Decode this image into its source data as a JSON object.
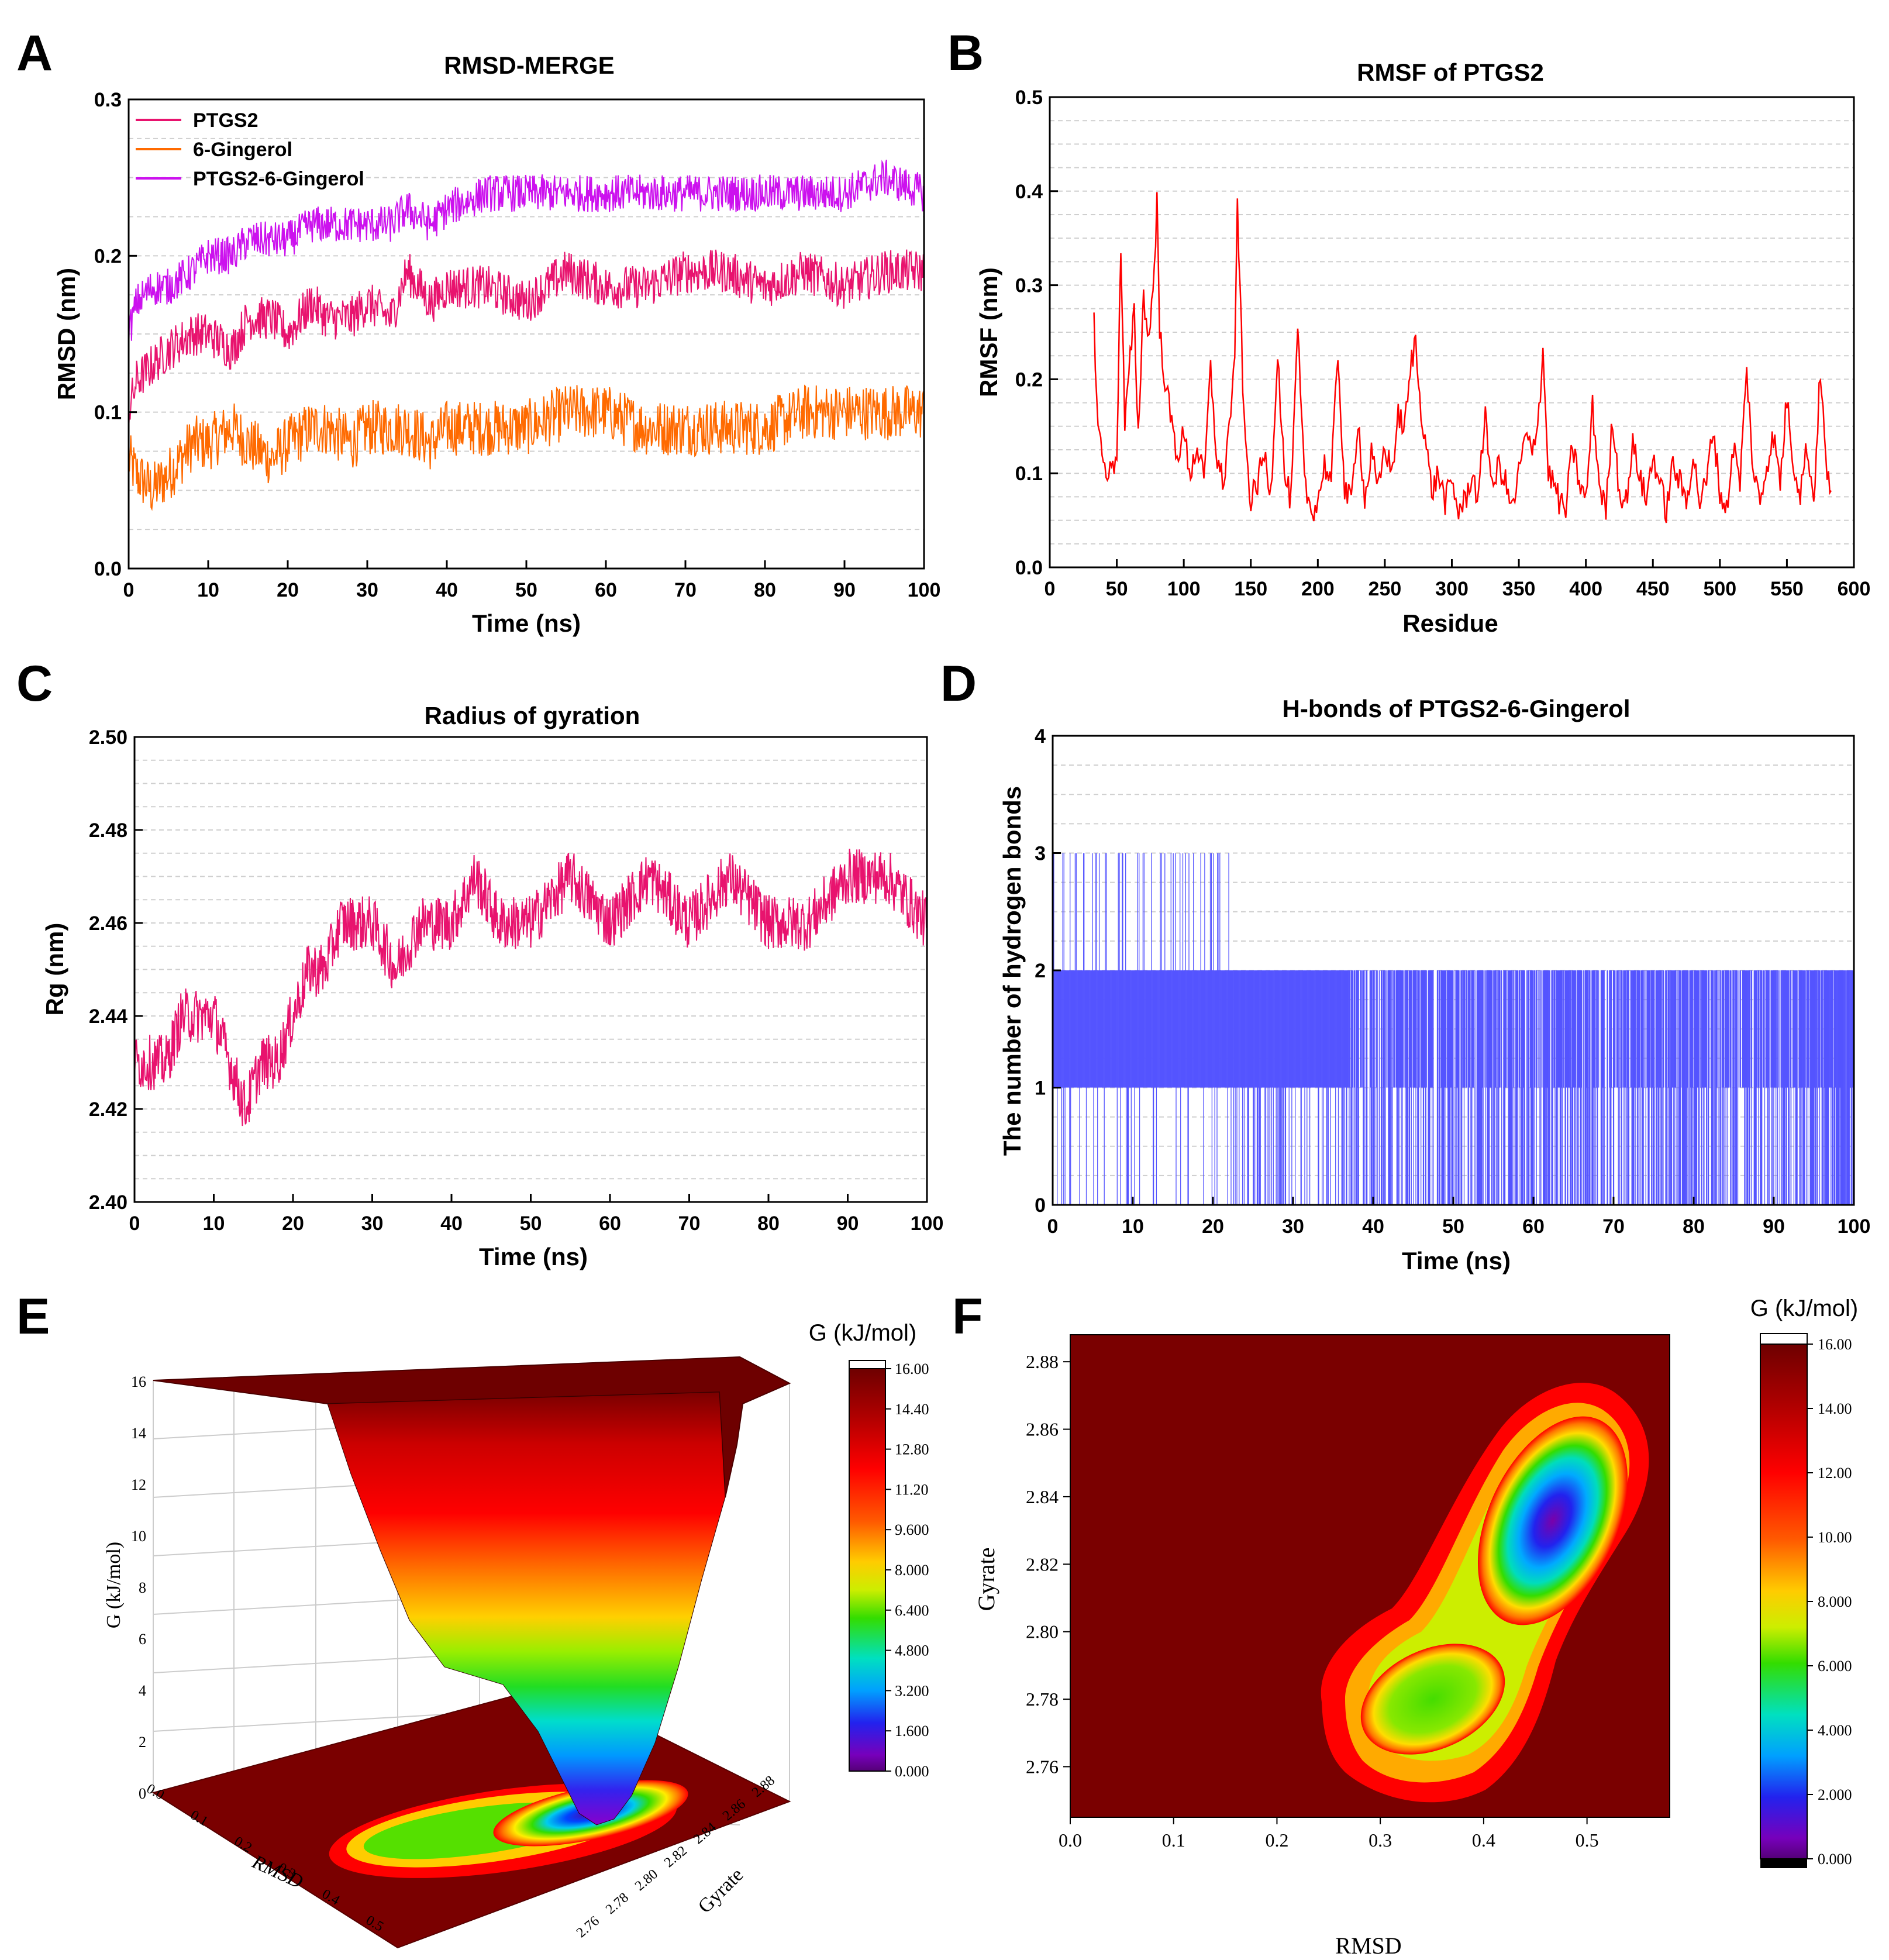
{
  "panels": {
    "A": {
      "label": "A",
      "chart_data": {
        "type": "line",
        "title": "RMSD-MERGE",
        "xlabel": "Time (ns)",
        "ylabel": "RMSD (nm)",
        "xlim": [
          0,
          100
        ],
        "ylim": [
          0,
          0.3
        ],
        "xticks": [
          "0",
          "10",
          "20",
          "30",
          "40",
          "50",
          "60",
          "70",
          "80",
          "90",
          "100"
        ],
        "yticks": [
          "0.0",
          "0.1",
          "0.2",
          "0.3"
        ],
        "legend": "top-left",
        "series": [
          {
            "name": "PTGS2",
            "color": "#e8136e",
            "x": [
              0,
              1,
              3,
              5,
              8,
              10,
              13,
              15,
              18,
              20,
              23,
              25,
              28,
              30,
              33,
              35,
              38,
              40,
              45,
              50,
              55,
              60,
              65,
              70,
              75,
              80,
              85,
              90,
              95,
              100
            ],
            "values": [
              0.1,
              0.12,
              0.13,
              0.14,
              0.15,
              0.15,
              0.14,
              0.16,
              0.16,
              0.15,
              0.17,
              0.16,
              0.16,
              0.17,
              0.16,
              0.19,
              0.17,
              0.18,
              0.18,
              0.17,
              0.19,
              0.18,
              0.18,
              0.19,
              0.19,
              0.18,
              0.19,
              0.18,
              0.19,
              0.19
            ]
          },
          {
            "name": "6-Gingerol",
            "color": "#ff6a00",
            "x": [
              0,
              1,
              3,
              5,
              8,
              10,
              13,
              15,
              18,
              20,
              23,
              25,
              28,
              30,
              33,
              35,
              38,
              40,
              45,
              50,
              55,
              60,
              65,
              70,
              75,
              80,
              85,
              90,
              95,
              100
            ],
            "values": [
              0.07,
              0.06,
              0.05,
              0.06,
              0.08,
              0.08,
              0.09,
              0.08,
              0.07,
              0.08,
              0.09,
              0.09,
              0.08,
              0.09,
              0.09,
              0.09,
              0.08,
              0.09,
              0.09,
              0.09,
              0.1,
              0.1,
              0.09,
              0.09,
              0.09,
              0.09,
              0.1,
              0.1,
              0.1,
              0.1
            ]
          },
          {
            "name": "PTGS2-6-Gingerol",
            "color": "#cc11ee",
            "x": [
              0,
              1,
              3,
              5,
              8,
              10,
              13,
              15,
              18,
              20,
              23,
              25,
              28,
              30,
              33,
              35,
              38,
              40,
              45,
              50,
              55,
              60,
              65,
              70,
              75,
              80,
              85,
              90,
              95,
              100
            ],
            "values": [
              0.15,
              0.17,
              0.18,
              0.18,
              0.19,
              0.2,
              0.2,
              0.21,
              0.21,
              0.21,
              0.22,
              0.22,
              0.22,
              0.22,
              0.22,
              0.23,
              0.22,
              0.23,
              0.24,
              0.24,
              0.24,
              0.24,
              0.24,
              0.24,
              0.24,
              0.24,
              0.24,
              0.24,
              0.25,
              0.24
            ]
          }
        ]
      }
    },
    "B": {
      "label": "B",
      "chart_data": {
        "type": "line",
        "title": "RMSF of PTGS2",
        "xlabel": "Residue",
        "ylabel": "RMSF (nm)",
        "xlim": [
          0,
          600
        ],
        "ylim": [
          0,
          0.5
        ],
        "xticks": [
          "0",
          "50",
          "100",
          "150",
          "200",
          "250",
          "300",
          "350",
          "400",
          "450",
          "500",
          "550",
          "600"
        ],
        "yticks": [
          "0.0",
          "0.1",
          "0.2",
          "0.3",
          "0.4",
          "0.5"
        ],
        "series": [
          {
            "name": "RMSF",
            "color": "#ff0000",
            "x": [
              33,
              36,
              40,
              45,
              50,
              53,
              56,
              60,
              63,
              66,
              70,
              74,
              78,
              80,
              82,
              86,
              90,
              95,
              100,
              105,
              110,
              115,
              120,
              125,
              130,
              135,
              138,
              140,
              145,
              150,
              155,
              160,
              165,
              170,
              175,
              180,
              185,
              190,
              195,
              200,
              205,
              210,
              215,
              220,
              225,
              230,
              235,
              240,
              245,
              250,
              255,
              260,
              265,
              270,
              273,
              276,
              280,
              285,
              290,
              295,
              300,
              305,
              310,
              315,
              320,
              325,
              330,
              335,
              340,
              345,
              350,
              355,
              360,
              365,
              368,
              372,
              376,
              380,
              385,
              390,
              395,
              400,
              405,
              410,
              415,
              420,
              425,
              430,
              435,
              440,
              445,
              450,
              455,
              460,
              465,
              470,
              475,
              480,
              485,
              490,
              495,
              500,
              505,
              510,
              515,
              520,
              525,
              530,
              535,
              540,
              545,
              550,
              555,
              560,
              565,
              570,
              575,
              580
            ],
            "values": [
              0.26,
              0.15,
              0.11,
              0.1,
              0.12,
              0.34,
              0.15,
              0.22,
              0.27,
              0.14,
              0.29,
              0.24,
              0.32,
              0.39,
              0.25,
              0.2,
              0.16,
              0.12,
              0.14,
              0.1,
              0.13,
              0.09,
              0.21,
              0.11,
              0.09,
              0.17,
              0.21,
              0.39,
              0.15,
              0.07,
              0.09,
              0.12,
              0.08,
              0.23,
              0.1,
              0.07,
              0.25,
              0.09,
              0.06,
              0.07,
              0.11,
              0.09,
              0.23,
              0.08,
              0.07,
              0.16,
              0.07,
              0.12,
              0.08,
              0.13,
              0.1,
              0.16,
              0.15,
              0.22,
              0.24,
              0.18,
              0.14,
              0.08,
              0.1,
              0.07,
              0.09,
              0.06,
              0.07,
              0.1,
              0.07,
              0.17,
              0.08,
              0.11,
              0.09,
              0.06,
              0.1,
              0.14,
              0.12,
              0.17,
              0.23,
              0.1,
              0.09,
              0.07,
              0.06,
              0.13,
              0.09,
              0.07,
              0.17,
              0.09,
              0.06,
              0.16,
              0.08,
              0.07,
              0.13,
              0.1,
              0.07,
              0.12,
              0.09,
              0.06,
              0.11,
              0.09,
              0.07,
              0.12,
              0.07,
              0.09,
              0.15,
              0.08,
              0.06,
              0.13,
              0.09,
              0.21,
              0.1,
              0.07,
              0.11,
              0.14,
              0.09,
              0.18,
              0.11,
              0.08,
              0.13,
              0.07,
              0.21,
              0.09
            ]
          }
        ]
      }
    },
    "C": {
      "label": "C",
      "chart_data": {
        "type": "line",
        "title": "Radius of gyration",
        "xlabel": "Time (ns)",
        "ylabel": "Rg (nm)",
        "xlim": [
          0,
          100
        ],
        "ylim": [
          2.4,
          2.5
        ],
        "xticks": [
          "0",
          "10",
          "20",
          "30",
          "40",
          "50",
          "60",
          "70",
          "80",
          "90",
          "100"
        ],
        "yticks": [
          "2.40",
          "2.42",
          "2.44",
          "2.46",
          "2.48",
          "2.50"
        ],
        "series": [
          {
            "name": "Rg",
            "color": "#e8136e",
            "x": [
              0,
              2,
              4,
              6,
              8,
              10,
              12,
              14,
              16,
              18,
              20,
              22,
              24,
              26,
              28,
              30,
              33,
              36,
              40,
              43,
              46,
              50,
              55,
              60,
              65,
              70,
              75,
              80,
              85,
              90,
              95,
              100
            ],
            "values": [
              2.43,
              2.43,
              2.43,
              2.44,
              2.44,
              2.44,
              2.43,
              2.42,
              2.43,
              2.43,
              2.44,
              2.45,
              2.45,
              2.46,
              2.46,
              2.46,
              2.45,
              2.46,
              2.46,
              2.47,
              2.46,
              2.46,
              2.47,
              2.46,
              2.47,
              2.46,
              2.47,
              2.46,
              2.46,
              2.47,
              2.47,
              2.46
            ]
          }
        ]
      }
    },
    "D": {
      "label": "D",
      "chart_data": {
        "type": "line",
        "title": "H-bonds of PTGS2-6-Gingerol",
        "xlabel": "Time (ns)",
        "ylabel": "The number of hydrogen bonds",
        "xlim": [
          0,
          100
        ],
        "ylim": [
          0,
          4
        ],
        "xticks": [
          "0",
          "10",
          "20",
          "30",
          "40",
          "50",
          "60",
          "70",
          "80",
          "90",
          "100"
        ],
        "yticks": [
          "0",
          "1",
          "2",
          "3",
          "4"
        ],
        "series": [
          {
            "name": "H-bonds",
            "color": "#5555ff",
            "dense_ranges": [
              [
                0,
                22.5,
                1,
                3
              ],
              [
                22.5,
                37,
                0,
                2
              ],
              [
                37,
                100,
                0,
                2
              ]
            ],
            "sparse_spikes_x": [
              0.5,
              1.5,
              2.5,
              3.5,
              5,
              6.5,
              8,
              10,
              11.5,
              13,
              15,
              16.5,
              18,
              20,
              21.5,
              25,
              27,
              29.5,
              31,
              33.5,
              35,
              37.5,
              39,
              41,
              43,
              45,
              47,
              49,
              51,
              53,
              55,
              57,
              59,
              61,
              63,
              65,
              67,
              69,
              71,
              73,
              75,
              77,
              79,
              81,
              83,
              85,
              87,
              89,
              91,
              93,
              95,
              97,
              99
            ]
          }
        ]
      }
    },
    "E": {
      "label": "E",
      "chart_data": {
        "type": "heatmap",
        "variant": "3d-surface",
        "title": "",
        "colorbar_title": "G (kJ/mol)",
        "colorbar_ticks": [
          "16.00",
          "14.40",
          "12.80",
          "11.20",
          "9.600",
          "8.000",
          "6.400",
          "4.800",
          "3.200",
          "1.600",
          "0.000"
        ],
        "z_label": "G (kJ/mol)",
        "z_ticks": [
          "0",
          "2",
          "4",
          "6",
          "8",
          "10",
          "12",
          "14",
          "16"
        ],
        "x_label": "RMSD",
        "x_ticks": [
          "0.0",
          "0.1",
          "0.2",
          "0.3",
          "0.4",
          "0.5"
        ],
        "y_label": "Gyrate",
        "y_ticks": [
          "2.76",
          "2.78",
          "2.80",
          "2.82",
          "2.84",
          "2.86",
          "2.88"
        ],
        "minimum": {
          "RMSD": 0.46,
          "Gyrate": 2.835,
          "G": 0.0
        }
      }
    },
    "F": {
      "label": "F",
      "chart_data": {
        "type": "heatmap",
        "variant": "contour",
        "colorbar_title": "G (kJ/mol)",
        "colorbar_ticks": [
          "16.00",
          "14.00",
          "12.00",
          "10.00",
          "8.000",
          "6.000",
          "4.000",
          "2.000",
          "0.000"
        ],
        "xlabel": "RMSD",
        "ylabel": "Gyrate",
        "xlim": [
          0.0,
          0.58
        ],
        "ylim": [
          2.745,
          2.888
        ],
        "xticks": [
          "0.0",
          "0.1",
          "0.2",
          "0.3",
          "0.4",
          "0.5"
        ],
        "yticks": [
          "2.76",
          "2.78",
          "2.80",
          "2.82",
          "2.84",
          "2.86",
          "2.88"
        ],
        "minimum": {
          "RMSD": 0.46,
          "Gyrate": 2.835,
          "G": 0.0
        },
        "secondary_basin": {
          "RMSD": 0.34,
          "Gyrate": 2.785,
          "G": 5.0
        }
      }
    }
  }
}
